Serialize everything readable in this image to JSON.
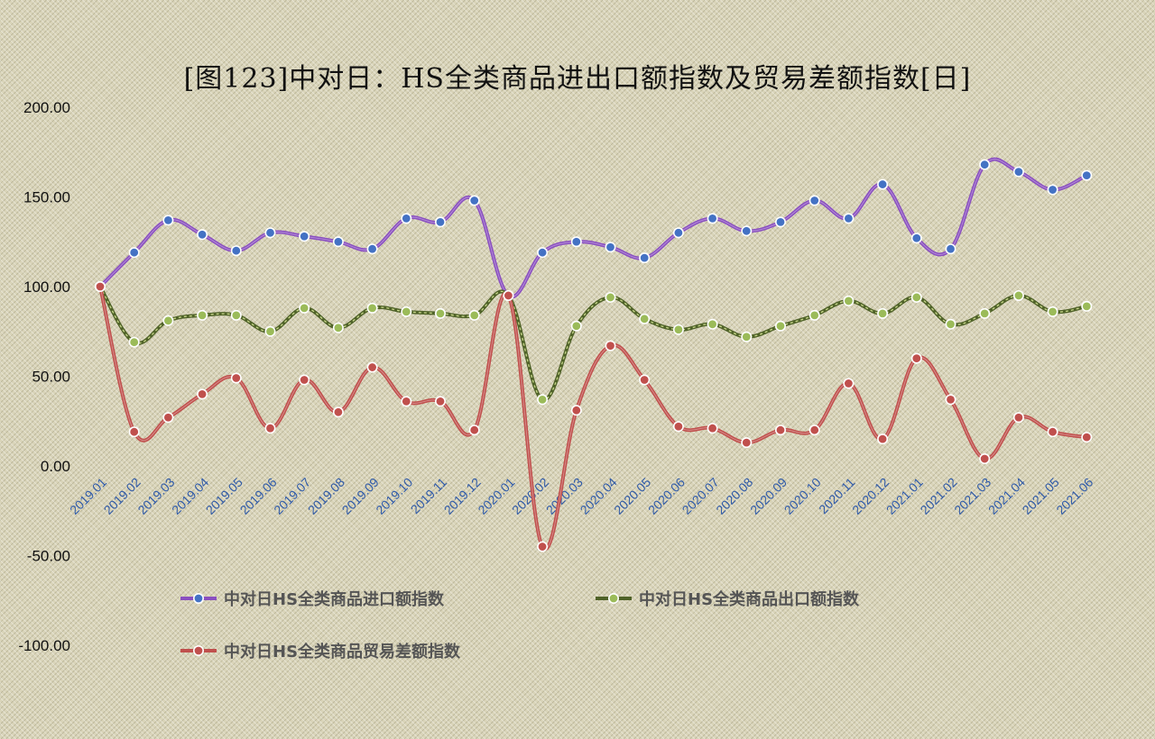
{
  "chart_data": {
    "type": "line",
    "title": "[图123]中对日：HS全类商品进出口额指数及贸易差额指数[日]",
    "xlabel": "",
    "ylabel": "",
    "ylim": [
      -100,
      200
    ],
    "yticks": [
      "200.00",
      "150.00",
      "100.00",
      "50.00",
      "0.00",
      "-50.00",
      "-100.00"
    ],
    "legend_position": "bottom",
    "grid": false,
    "categories": [
      "2019.01",
      "2019.02",
      "2019.03",
      "2019.04",
      "2019.05",
      "2019.06",
      "2019.07",
      "2019.08",
      "2019.09",
      "2019.10",
      "2019.11",
      "2019.12",
      "2020.01",
      "2020.02",
      "2020.03",
      "2020.04",
      "2020.05",
      "2020.06",
      "2020.07",
      "2020.08",
      "2020.09",
      "2020.10",
      "2020.11",
      "2020.12",
      "2021.01",
      "2021.02",
      "2021.03",
      "2021.04",
      "2021.05",
      "2021.06"
    ],
    "series": [
      {
        "name": "中对日HS全类商品进口额指数",
        "line_color": "#8a4fc0",
        "marker_color": "#4472c4",
        "values": [
          100,
          119,
          137,
          129,
          120,
          130,
          128,
          125,
          121,
          138,
          136,
          148,
          95,
          119,
          125,
          122,
          116,
          130,
          138,
          131,
          136,
          148,
          138,
          157,
          127,
          121,
          168,
          164,
          154,
          162
        ]
      },
      {
        "name": "中对日HS全类商品出口额指数",
        "line_color": "#4f6228",
        "marker_color": "#9bbb59",
        "values": [
          100,
          69,
          81,
          84,
          84,
          75,
          88,
          77,
          88,
          86,
          85,
          84,
          95,
          37,
          78,
          94,
          82,
          76,
          79,
          72,
          78,
          84,
          92,
          85,
          94,
          79,
          85,
          95,
          86,
          89
        ]
      },
      {
        "name": "中对日HS全类商品贸易差额指数",
        "line_color": "#c0504d",
        "marker_color": "#c0504d",
        "values": [
          100,
          19,
          27,
          40,
          49,
          21,
          48,
          30,
          55,
          36,
          36,
          20,
          95,
          -45,
          31,
          67,
          48,
          22,
          21,
          13,
          20,
          20,
          46,
          15,
          60,
          37,
          4,
          27,
          19,
          16
        ]
      }
    ]
  }
}
